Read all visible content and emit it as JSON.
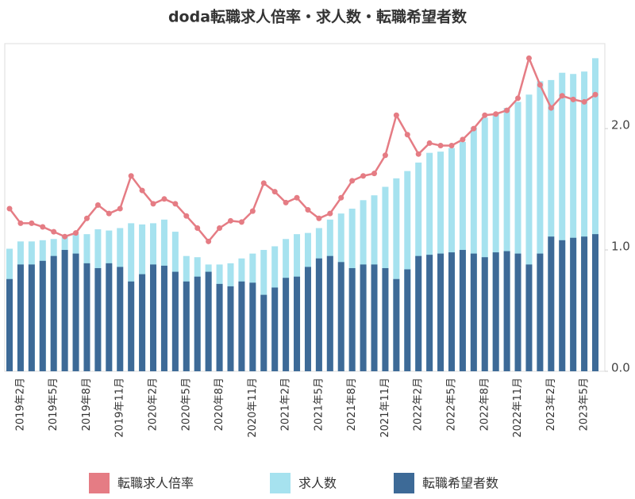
{
  "chart_data": {
    "type": "bar",
    "title": "doda転職求人倍率・求人数・転職希望者数",
    "categories": [
      null,
      "2019年2月",
      null,
      null,
      "2019年5月",
      null,
      null,
      "2019年8月",
      null,
      null,
      "2019年11月",
      null,
      null,
      "2020年2月",
      null,
      null,
      "2020年5月",
      null,
      null,
      "2020年8月",
      null,
      null,
      "2020年11月",
      null,
      null,
      "2021年2月",
      null,
      null,
      "2021年5月",
      null,
      null,
      "2021年8月",
      null,
      null,
      "2021年11月",
      null,
      null,
      "2022年2月",
      null,
      null,
      "2022年5月",
      null,
      null,
      "2022年8月",
      null,
      null,
      "2022年11月",
      null,
      null,
      "2023年2月",
      null,
      null,
      "2023年5月",
      null
    ],
    "series": [
      {
        "name": "転職求人倍率",
        "type": "line",
        "color": "#e57c84",
        "values": [
          1.34,
          1.22,
          1.22,
          1.19,
          1.15,
          1.11,
          1.14,
          1.26,
          1.37,
          1.3,
          1.34,
          1.61,
          1.49,
          1.38,
          1.42,
          1.38,
          1.28,
          1.18,
          1.07,
          1.18,
          1.24,
          1.23,
          1.32,
          1.55,
          1.48,
          1.39,
          1.43,
          1.33,
          1.26,
          1.3,
          1.43,
          1.57,
          1.61,
          1.63,
          1.78,
          2.11,
          1.95,
          1.79,
          1.88,
          1.86,
          1.86,
          1.91,
          2.0,
          2.11,
          2.12,
          2.15,
          2.25,
          2.58,
          2.36,
          2.17,
          2.27,
          2.24,
          2.22,
          2.28
        ]
      },
      {
        "name": "求人数",
        "type": "bar",
        "color": "#a6e2ef",
        "values": [
          1.01,
          1.07,
          1.07,
          1.08,
          1.09,
          1.11,
          1.13,
          1.13,
          1.17,
          1.16,
          1.18,
          1.22,
          1.21,
          1.22,
          1.25,
          1.15,
          0.95,
          0.94,
          0.88,
          0.88,
          0.89,
          0.93,
          0.97,
          1.0,
          1.03,
          1.09,
          1.13,
          1.14,
          1.18,
          1.25,
          1.3,
          1.34,
          1.41,
          1.45,
          1.52,
          1.59,
          1.65,
          1.72,
          1.8,
          1.81,
          1.84,
          1.89,
          2.01,
          2.09,
          2.12,
          2.17,
          2.22,
          2.28,
          2.39,
          2.4,
          2.46,
          2.45,
          2.47,
          2.58
        ]
      },
      {
        "name": "転職希望者数",
        "type": "bar",
        "color": "#3d6a97",
        "values": [
          0.76,
          0.88,
          0.88,
          0.91,
          0.95,
          1.0,
          0.97,
          0.89,
          0.85,
          0.89,
          0.86,
          0.74,
          0.8,
          0.88,
          0.87,
          0.82,
          0.74,
          0.78,
          0.82,
          0.72,
          0.7,
          0.74,
          0.73,
          0.63,
          0.69,
          0.77,
          0.78,
          0.86,
          0.93,
          0.95,
          0.9,
          0.85,
          0.88,
          0.88,
          0.85,
          0.76,
          0.84,
          0.95,
          0.96,
          0.97,
          0.98,
          1.0,
          0.97,
          0.94,
          0.98,
          0.99,
          0.97,
          0.88,
          0.97,
          1.11,
          1.08,
          1.1,
          1.11,
          1.13
        ]
      }
    ],
    "ylim": [
      0,
      2.7
    ],
    "yticks": [
      {
        "value": 0,
        "label": "0.0"
      },
      {
        "value": 1,
        "label": "1.0"
      },
      {
        "value": 2,
        "label": "2.0"
      }
    ]
  }
}
